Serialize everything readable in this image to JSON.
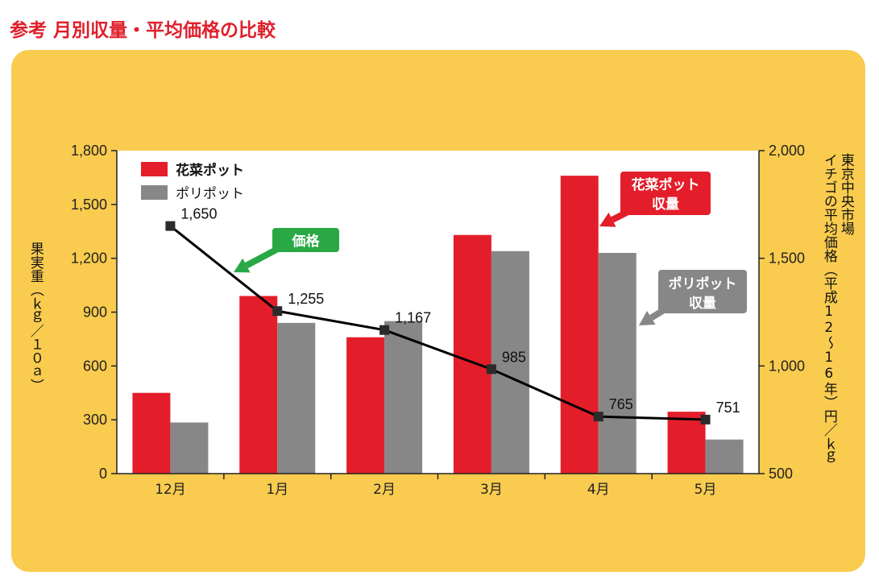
{
  "title": "参考 月別収量・平均価格の比較",
  "colors": {
    "flower": "#e31e2a",
    "poly": "#878787",
    "price_callout": "#2aa845",
    "background": "#f9cb4f",
    "title": "#e01f2b"
  },
  "chart_data": {
    "type": "bar",
    "categories": [
      "12月",
      "1月",
      "2月",
      "3月",
      "4月",
      "5月"
    ],
    "series": [
      {
        "name": "花菜ポット",
        "values": [
          450,
          990,
          760,
          1330,
          1660,
          345
        ]
      },
      {
        "name": "ポリポット",
        "values": [
          285,
          840,
          850,
          1240,
          1230,
          190
        ]
      }
    ],
    "line_series": {
      "values": [
        1650,
        1255,
        1167,
        985,
        765,
        751
      ],
      "labels": [
        "1,650",
        "1,255",
        "1,167",
        "985",
        "765",
        "751"
      ]
    },
    "ylabel_left": "果実重（ｋｇ／１０ａ）",
    "ylabel_right_line1": "東京中央市場",
    "ylabel_right_line2": "イチゴの平均価格（平成12～16年）円／ｋｇ",
    "ylim_left": [
      0,
      1800
    ],
    "ylim_right": [
      500,
      2000
    ],
    "yticks_left": [
      "0",
      "300",
      "600",
      "900",
      "1,200",
      "1,500",
      "1,800"
    ],
    "yticks_right": [
      "500",
      "1,000",
      "1,500",
      "2,000"
    ],
    "grid": false,
    "legend_position": "top-left",
    "callouts": {
      "price": "価格",
      "flower_line1": "花菜ポット",
      "flower_line2": "収量",
      "poly_line1": "ポリポット",
      "poly_line2": "収量"
    }
  }
}
